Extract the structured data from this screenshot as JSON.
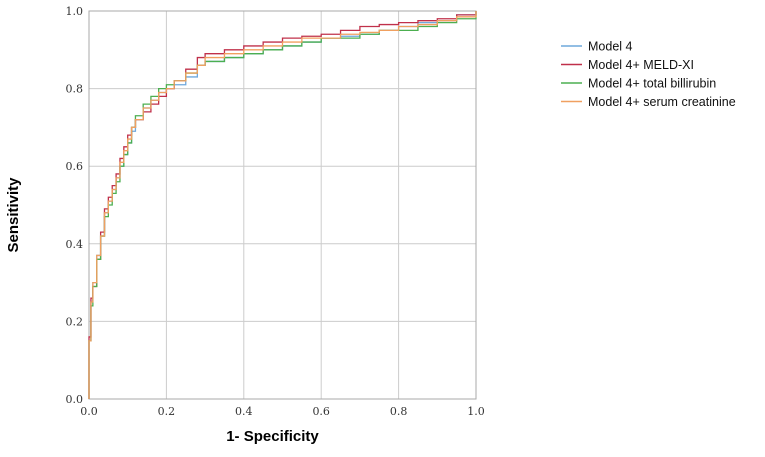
{
  "chart_data": {
    "type": "line",
    "title": "",
    "xlabel": "1- Specificity",
    "ylabel": "Sensitivity",
    "xlim": [
      0,
      1
    ],
    "ylim": [
      0,
      1
    ],
    "xticks": [
      "0.0",
      "0.2",
      "0.4",
      "0.6",
      "0.8",
      "1.0"
    ],
    "yticks": [
      "0.0",
      "0.2",
      "0.4",
      "0.6",
      "0.8",
      "1.0"
    ],
    "grid": true,
    "legend_position": "right",
    "series": [
      {
        "name": "Model 4",
        "color": "#6fa8dc",
        "x": [
          0,
          0,
          0.005,
          0.01,
          0.02,
          0.03,
          0.04,
          0.05,
          0.06,
          0.07,
          0.08,
          0.09,
          0.1,
          0.11,
          0.12,
          0.14,
          0.16,
          0.18,
          0.2,
          0.22,
          0.25,
          0.28,
          0.3,
          0.35,
          0.4,
          0.45,
          0.5,
          0.55,
          0.6,
          0.65,
          0.7,
          0.75,
          0.8,
          0.85,
          0.9,
          0.95,
          1.0
        ],
        "y": [
          0,
          0.15,
          0.25,
          0.3,
          0.37,
          0.42,
          0.48,
          0.51,
          0.54,
          0.57,
          0.6,
          0.63,
          0.66,
          0.69,
          0.72,
          0.75,
          0.77,
          0.79,
          0.8,
          0.81,
          0.83,
          0.86,
          0.87,
          0.88,
          0.89,
          0.9,
          0.91,
          0.92,
          0.93,
          0.935,
          0.94,
          0.95,
          0.96,
          0.97,
          0.975,
          0.99,
          1.0
        ]
      },
      {
        "name": "Model 4+ MELD-XI",
        "color": "#c0304a",
        "x": [
          0,
          0,
          0.005,
          0.01,
          0.02,
          0.03,
          0.04,
          0.05,
          0.06,
          0.07,
          0.08,
          0.09,
          0.1,
          0.11,
          0.12,
          0.14,
          0.16,
          0.18,
          0.2,
          0.22,
          0.25,
          0.28,
          0.3,
          0.35,
          0.4,
          0.45,
          0.5,
          0.55,
          0.6,
          0.65,
          0.7,
          0.75,
          0.8,
          0.85,
          0.9,
          0.95,
          1.0
        ],
        "y": [
          0,
          0.16,
          0.26,
          0.29,
          0.36,
          0.43,
          0.49,
          0.52,
          0.55,
          0.58,
          0.62,
          0.65,
          0.68,
          0.7,
          0.72,
          0.74,
          0.76,
          0.78,
          0.8,
          0.82,
          0.85,
          0.88,
          0.89,
          0.9,
          0.91,
          0.92,
          0.93,
          0.935,
          0.94,
          0.95,
          0.96,
          0.965,
          0.97,
          0.975,
          0.98,
          0.99,
          1.0
        ]
      },
      {
        "name": "Model 4+ total billirubin",
        "color": "#4caf50",
        "x": [
          0,
          0,
          0.005,
          0.01,
          0.02,
          0.03,
          0.04,
          0.05,
          0.06,
          0.07,
          0.08,
          0.09,
          0.1,
          0.11,
          0.12,
          0.14,
          0.16,
          0.18,
          0.2,
          0.22,
          0.25,
          0.28,
          0.3,
          0.35,
          0.4,
          0.45,
          0.5,
          0.55,
          0.6,
          0.65,
          0.7,
          0.75,
          0.8,
          0.85,
          0.9,
          0.95,
          1.0
        ],
        "y": [
          0,
          0.15,
          0.24,
          0.29,
          0.36,
          0.42,
          0.47,
          0.5,
          0.53,
          0.56,
          0.6,
          0.63,
          0.66,
          0.7,
          0.73,
          0.76,
          0.78,
          0.8,
          0.81,
          0.82,
          0.84,
          0.86,
          0.87,
          0.88,
          0.89,
          0.9,
          0.91,
          0.92,
          0.93,
          0.93,
          0.94,
          0.95,
          0.95,
          0.96,
          0.97,
          0.98,
          1.0
        ]
      },
      {
        "name": "Model 4+ serum creatinine",
        "color": "#f0a060",
        "x": [
          0,
          0,
          0.005,
          0.01,
          0.02,
          0.03,
          0.04,
          0.05,
          0.06,
          0.07,
          0.08,
          0.09,
          0.1,
          0.11,
          0.12,
          0.14,
          0.16,
          0.18,
          0.2,
          0.22,
          0.25,
          0.28,
          0.3,
          0.35,
          0.4,
          0.45,
          0.5,
          0.55,
          0.6,
          0.65,
          0.7,
          0.75,
          0.8,
          0.85,
          0.9,
          0.95,
          1.0
        ],
        "y": [
          0,
          0.15,
          0.25,
          0.3,
          0.37,
          0.42,
          0.48,
          0.51,
          0.54,
          0.57,
          0.61,
          0.64,
          0.67,
          0.7,
          0.72,
          0.75,
          0.77,
          0.79,
          0.8,
          0.82,
          0.84,
          0.86,
          0.88,
          0.89,
          0.9,
          0.91,
          0.92,
          0.93,
          0.93,
          0.94,
          0.945,
          0.95,
          0.96,
          0.965,
          0.975,
          0.985,
          1.0
        ]
      }
    ]
  }
}
